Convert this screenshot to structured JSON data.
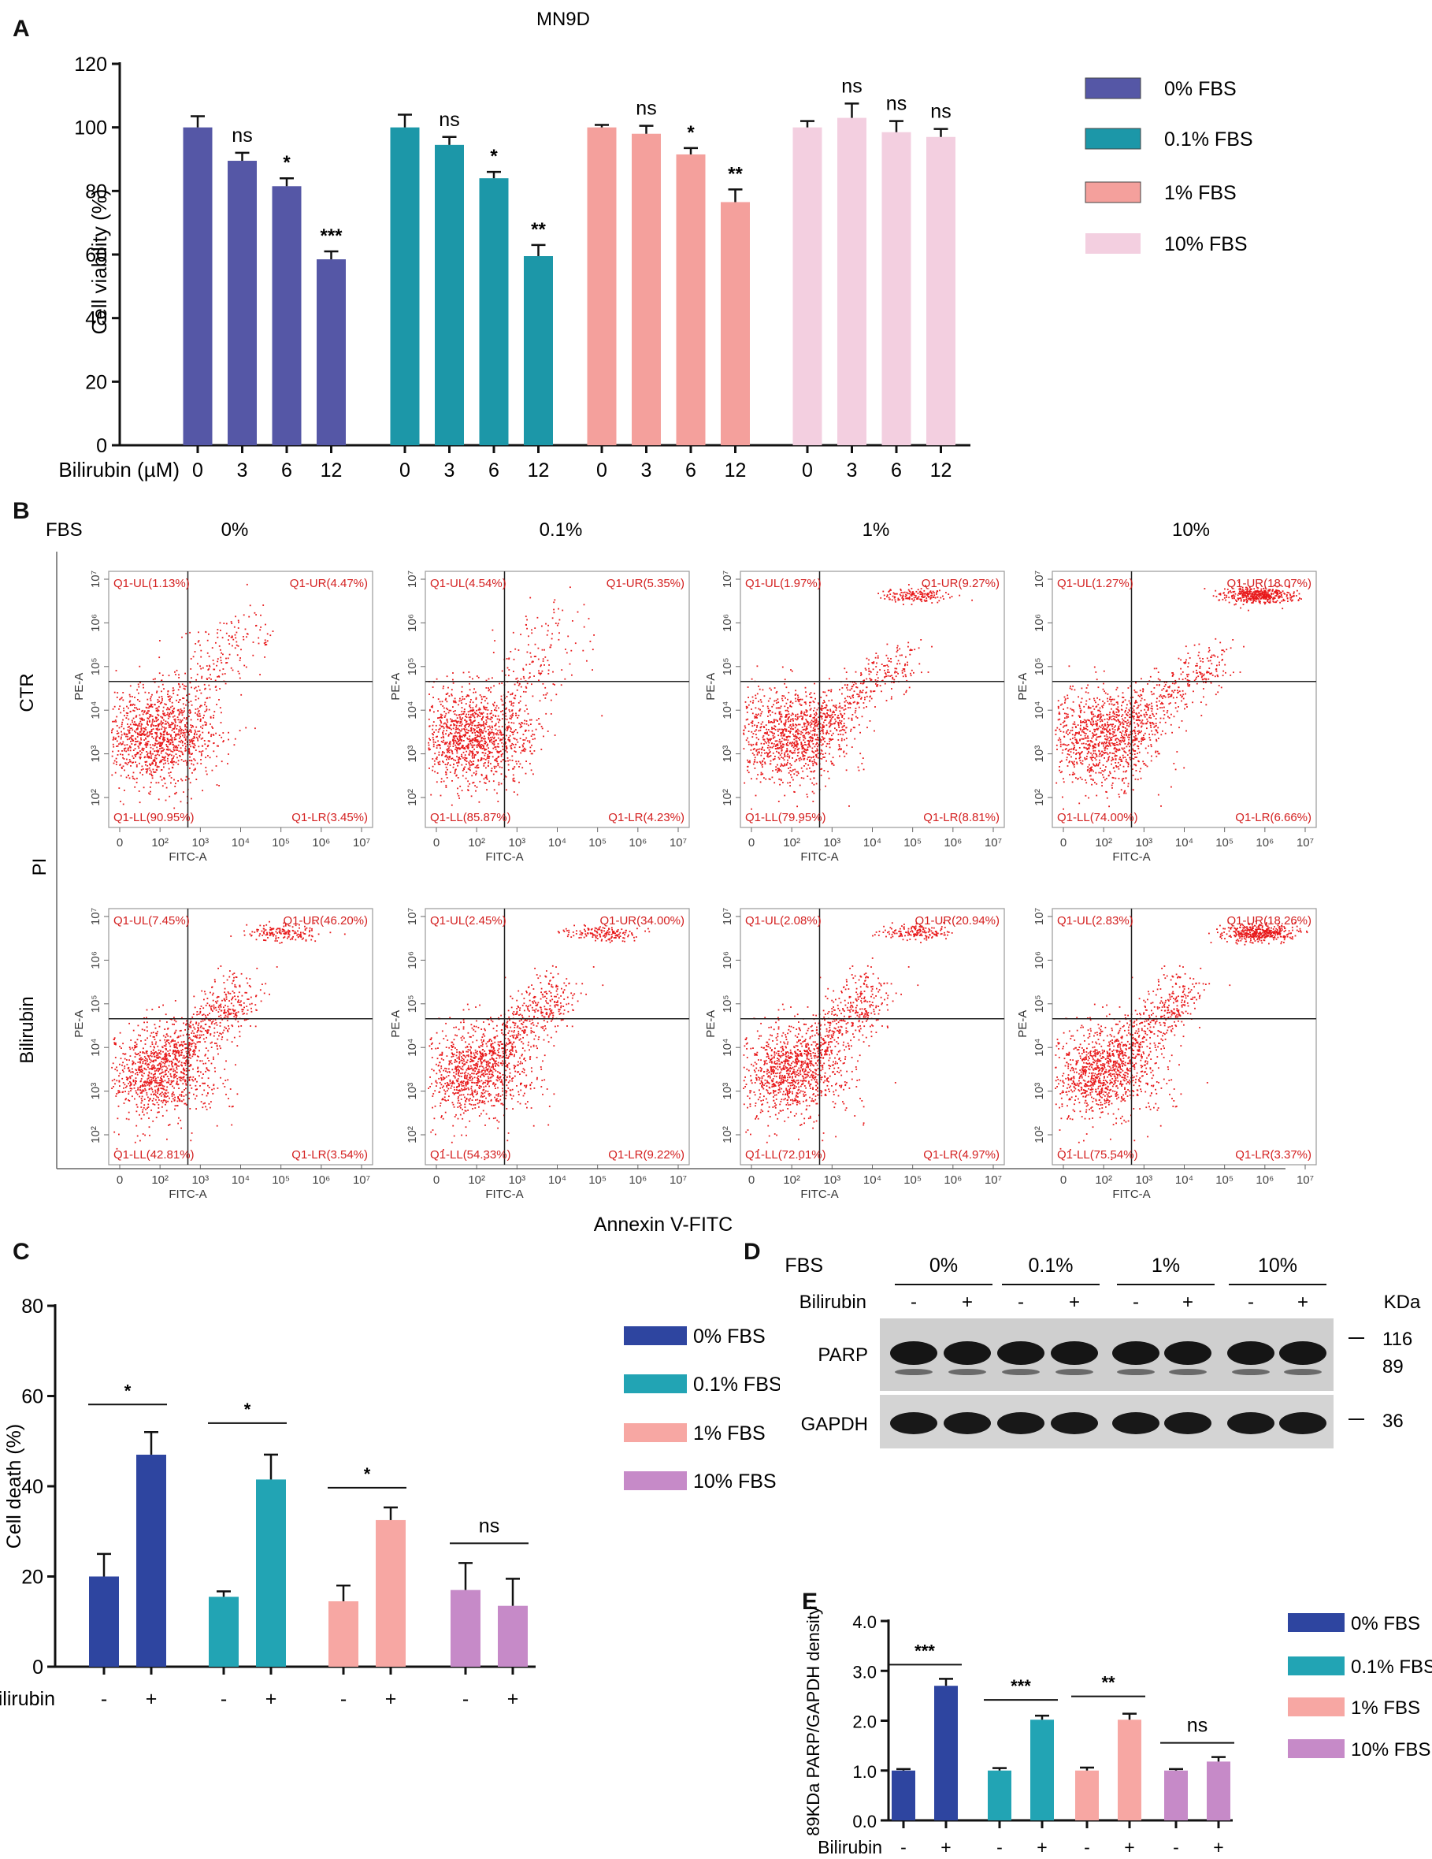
{
  "colors": {
    "c0": "#5557a6",
    "c01": "#1c97a8",
    "c1": "#f4a09c",
    "c10": "#f3cfe0",
    "c0b": "#2e45a0",
    "c01b": "#22a4b4",
    "c1b": "#f7a7a3",
    "c10b": "#c68ac8",
    "dot": "#e8191b"
  },
  "panels": {
    "a": "A",
    "b": "B",
    "c": "C",
    "d": "D",
    "e": "E"
  },
  "chart_data": [
    {
      "id": "A",
      "type": "bar",
      "title": "MN9D",
      "ylabel": "Cell viability (%)",
      "xlabel_prefix": "Bilirubin (µM)",
      "ylim": [
        0,
        120
      ],
      "yticks": [
        0,
        20,
        40,
        60,
        80,
        100,
        120
      ],
      "groups": [
        {
          "name": "0% FBS",
          "color": "#5557a6",
          "categories": [
            "0",
            "3",
            "6",
            "12"
          ],
          "values": [
            100,
            89.5,
            81.5,
            58.5
          ],
          "errors": [
            3.5,
            2.5,
            2.5,
            2.5
          ],
          "sig": [
            "",
            "ns",
            "*",
            "***"
          ]
        },
        {
          "name": "0.1% FBS",
          "color": "#1c97a8",
          "categories": [
            "0",
            "3",
            "6",
            "12"
          ],
          "values": [
            100,
            94.5,
            84,
            59.5
          ],
          "errors": [
            4,
            2.5,
            2,
            3.5
          ],
          "sig": [
            "",
            "ns",
            "*",
            "**"
          ]
        },
        {
          "name": "1% FBS",
          "color": "#f4a09c",
          "categories": [
            "0",
            "3",
            "6",
            "12"
          ],
          "values": [
            100,
            98,
            91.5,
            76.5
          ],
          "errors": [
            0.8,
            2.5,
            2,
            4
          ],
          "sig": [
            "",
            "ns",
            "*",
            "**"
          ]
        },
        {
          "name": "10% FBS",
          "color": "#f3cfe0",
          "categories": [
            "0",
            "3",
            "6",
            "12"
          ],
          "values": [
            100,
            103,
            98.5,
            97
          ],
          "errors": [
            2,
            4.5,
            3.5,
            2.5
          ],
          "sig": [
            "",
            "ns",
            "ns",
            "ns"
          ]
        }
      ],
      "legend": [
        "0% FBS",
        "0.1% FBS",
        "1% FBS",
        "10% FBS"
      ]
    },
    {
      "id": "B",
      "type": "scatter",
      "header_label": "FBS",
      "columns": [
        "0%",
        "0.1%",
        "1%",
        "10%"
      ],
      "rows": [
        "CTR",
        "Bilirubin"
      ],
      "ylabel": "PI",
      "xlabel": "Annexin V-FITC",
      "axis_x": "FITC-A",
      "axis_y": "PE-A",
      "plots": [
        {
          "row": 0,
          "col": 0,
          "UL": "Q1-UL(1.13%)",
          "UR": "Q1-UR(4.47%)",
          "LL": "Q1-LL(90.95%)",
          "LR": "Q1-LR(3.45%)"
        },
        {
          "row": 0,
          "col": 1,
          "UL": "Q1-UL(4.54%)",
          "UR": "Q1-UR(5.35%)",
          "LL": "Q1-LL(85.87%)",
          "LR": "Q1-LR(4.23%)"
        },
        {
          "row": 0,
          "col": 2,
          "UL": "Q1-UL(1.97%)",
          "UR": "Q1-UR(9.27%)",
          "LL": "Q1-LL(79.95%)",
          "LR": "Q1-LR(8.81%)"
        },
        {
          "row": 0,
          "col": 3,
          "UL": "Q1-UL(1.27%)",
          "UR": "Q1-UR(18.07%)",
          "LL": "Q1-LL(74.00%)",
          "LR": "Q1-LR(6.66%)"
        },
        {
          "row": 1,
          "col": 0,
          "UL": "Q1-UL(7.45%)",
          "UR": "Q1-UR(46.20%)",
          "LL": "Q1-LL(42.81%)",
          "LR": "Q1-LR(3.54%)"
        },
        {
          "row": 1,
          "col": 1,
          "UL": "Q1-UL(2.45%)",
          "UR": "Q1-UR(34.00%)",
          "LL": "Q1-LL(54.33%)",
          "LR": "Q1-LR(9.22%)"
        },
        {
          "row": 1,
          "col": 2,
          "UL": "Q1-UL(2.08%)",
          "UR": "Q1-UR(20.94%)",
          "LL": "Q1-LL(72.01%)",
          "LR": "Q1-LR(4.97%)"
        },
        {
          "row": 1,
          "col": 3,
          "UL": "Q1-UL(2.83%)",
          "UR": "Q1-UR(18.26%)",
          "LL": "Q1-LL(75.54%)",
          "LR": "Q1-LR(3.37%)"
        }
      ],
      "x_ticks": [
        "0",
        "10²",
        "10³",
        "10⁴",
        "10⁵",
        "10⁶",
        "10⁷"
      ],
      "y_ticks": [
        "10²",
        "10³",
        "10⁴",
        "10⁵",
        "10⁶",
        "10⁷"
      ]
    },
    {
      "id": "C",
      "type": "bar",
      "ylabel": "Cell death (%)",
      "xlabel_prefix": "Bilirubin",
      "ylim": [
        0,
        80
      ],
      "yticks": [
        0,
        20,
        40,
        60,
        80
      ],
      "groups": [
        {
          "name": "0% FBS",
          "color": "#2e45a0",
          "categories": [
            "-",
            "+"
          ],
          "values": [
            20,
            47
          ],
          "errors": [
            5,
            5
          ],
          "sig": "*"
        },
        {
          "name": "0.1% FBS",
          "color": "#22a4b4",
          "categories": [
            "-",
            "+"
          ],
          "values": [
            15.5,
            41.5
          ],
          "errors": [
            1.2,
            5.5
          ],
          "sig": "*"
        },
        {
          "name": "1% FBS",
          "color": "#f7a7a3",
          "categories": [
            "-",
            "+"
          ],
          "values": [
            14.5,
            32.5
          ],
          "errors": [
            3.5,
            2.8
          ],
          "sig": "*"
        },
        {
          "name": "10% FBS",
          "color": "#c68ac8",
          "categories": [
            "-",
            "+"
          ],
          "values": [
            17,
            13.5
          ],
          "errors": [
            6,
            6
          ],
          "sig": "ns"
        }
      ],
      "legend": [
        "0% FBS",
        "0.1% FBS",
        "1% FBS",
        "10% FBS"
      ]
    },
    {
      "id": "E",
      "type": "bar",
      "ylabel": "89KDa PARP/GAPDH density",
      "xlabel_prefix": "Bilirubin",
      "ylim": [
        0,
        4
      ],
      "yticks": [
        "0.0",
        "1.0",
        "2.0",
        "3.0",
        "4.0"
      ],
      "groups": [
        {
          "name": "0% FBS",
          "color": "#2e45a0",
          "categories": [
            "-",
            "+"
          ],
          "values": [
            1.0,
            2.7
          ],
          "errors": [
            0.03,
            0.14
          ],
          "sig": "***"
        },
        {
          "name": "0.1% FBS",
          "color": "#22a4b4",
          "categories": [
            "-",
            "+"
          ],
          "values": [
            1.0,
            2.02
          ],
          "errors": [
            0.05,
            0.08
          ],
          "sig": "***"
        },
        {
          "name": "1% FBS",
          "color": "#f7a7a3",
          "categories": [
            "-",
            "+"
          ],
          "values": [
            1.0,
            2.02
          ],
          "errors": [
            0.06,
            0.12
          ],
          "sig": "**"
        },
        {
          "name": "10% FBS",
          "color": "#c68ac8",
          "categories": [
            "-",
            "+"
          ],
          "values": [
            1.0,
            1.18
          ],
          "errors": [
            0.03,
            0.09
          ],
          "sig": "ns"
        }
      ],
      "legend": [
        "0% FBS",
        "0.1% FBS",
        "1% FBS",
        "10% FBS"
      ]
    }
  ],
  "blot": {
    "fbs_label": "FBS",
    "fbs_groups": [
      "0%",
      "0.1%",
      "1%",
      "10%"
    ],
    "bilirubin_label": "Bilirubin",
    "lanes": [
      "-",
      "+",
      "-",
      "+",
      "-",
      "+",
      "-",
      "+"
    ],
    "kda_label": "KDa",
    "bands": [
      "PARP",
      "GAPDH"
    ],
    "markers": [
      "116",
      "89",
      "36"
    ]
  }
}
